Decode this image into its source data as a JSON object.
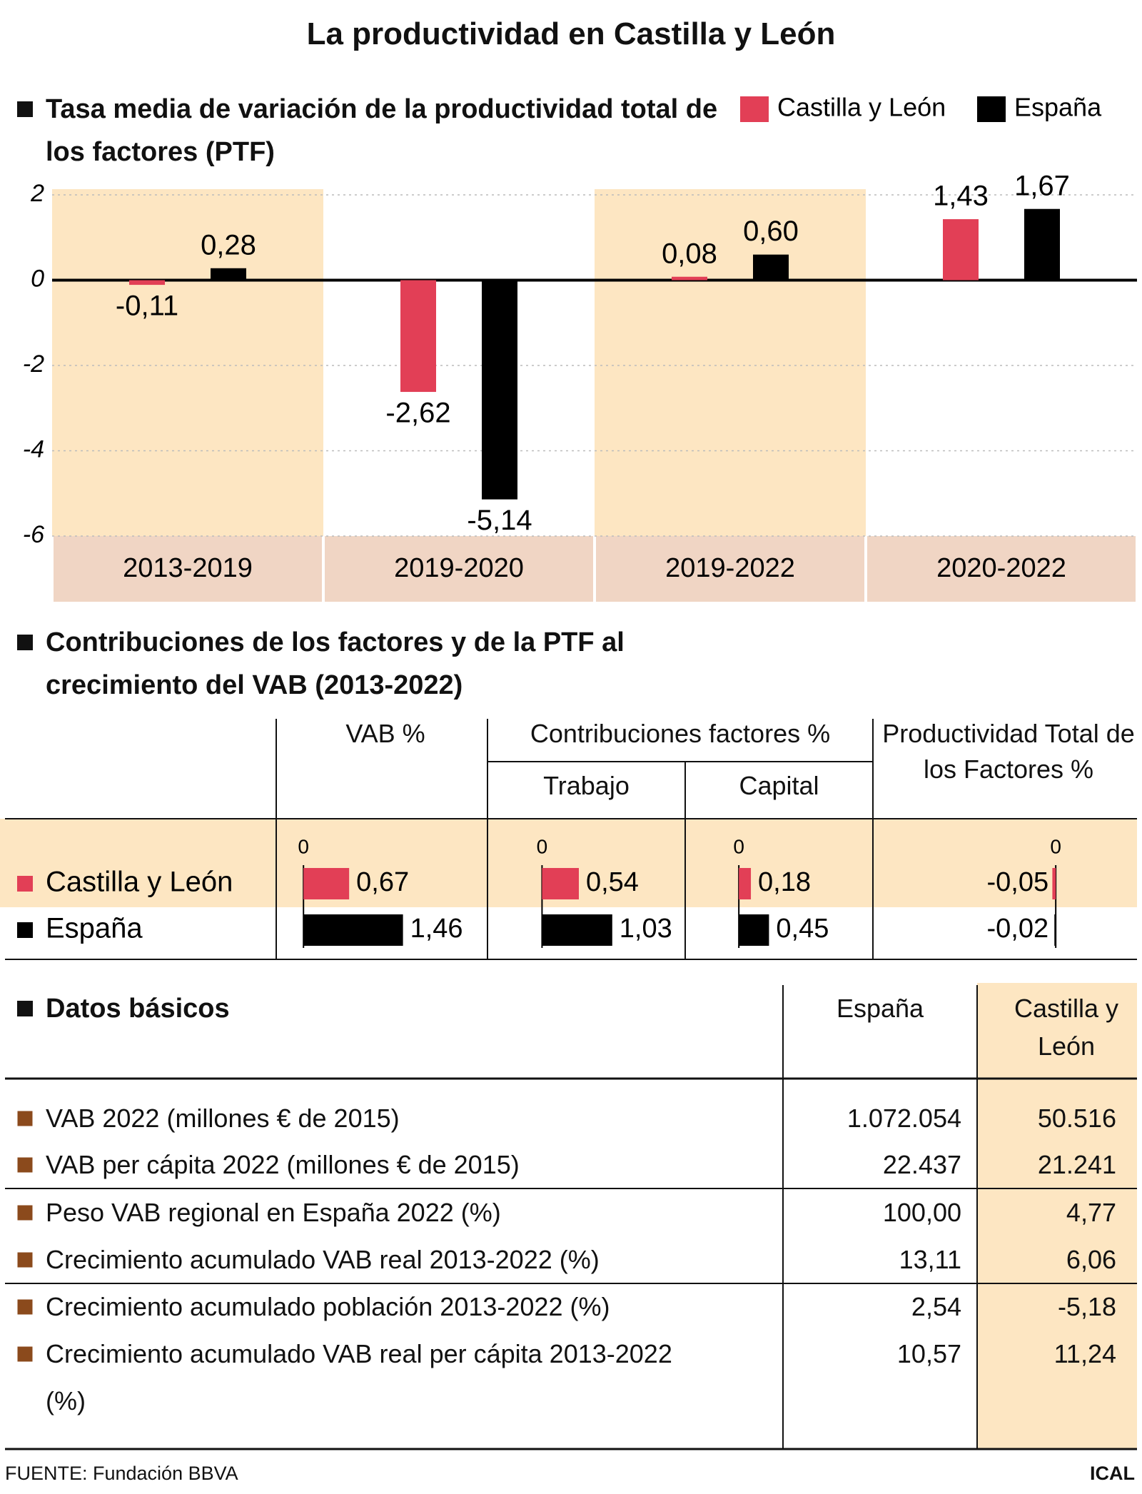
{
  "header": {
    "title": "La productividad en Castilla y León"
  },
  "chart_data": [
    {
      "type": "bar",
      "title": "Tasa media de variación de la productividad total de los factores (PTF)",
      "categories": [
        "2013-2019",
        "2019-2020",
        "2019-2022",
        "2020-2022"
      ],
      "series": [
        {
          "name": "Castilla y León",
          "color": "#e23f56",
          "values": [
            -0.11,
            -2.62,
            0.08,
            1.43
          ],
          "value_labels": [
            "-0,11",
            "-2,62",
            "0,08",
            "1,43"
          ]
        },
        {
          "name": "España",
          "color": "#000000",
          "values": [
            0.28,
            -5.14,
            0.6,
            1.67
          ],
          "value_labels": [
            "0,28",
            "-5,14",
            "0,60",
            "1,67"
          ]
        }
      ],
      "ylim": [
        -6,
        2
      ],
      "yticks": [
        -6,
        -4,
        -2,
        0,
        2
      ],
      "grid": true,
      "legend": "top-right"
    },
    {
      "type": "hbar-panels",
      "title": "Contribuciones de los factores y de la PTF al crecimiento del VAB (2013-2022)",
      "categories": [
        "Castilla y León",
        "España"
      ],
      "colors": [
        "#e23f56",
        "#000000"
      ],
      "panels": [
        {
          "name": "VAB %",
          "values": [
            0.67,
            1.46
          ],
          "value_labels": [
            "0,67",
            "1,46"
          ],
          "xlim": [
            -0.4,
            2.7
          ],
          "xticks": [
            0
          ]
        },
        {
          "name": "Contribuciones factores %",
          "panels": [
            {
              "name": "Trabajo",
              "values": [
                0.54,
                1.03
              ],
              "value_labels": [
                "0,54",
                "1,03"
              ],
              "xlim": [
                -0.8,
                2.1
              ],
              "xticks": [
                0
              ]
            },
            {
              "name": "Capital",
              "values": [
                0.18,
                0.45
              ],
              "value_labels": [
                "0,18",
                "0,45"
              ],
              "xlim": [
                -0.8,
                2.0
              ],
              "xticks": [
                0
              ]
            }
          ]
        },
        {
          "name": "Productividad Total de los Factores %",
          "values": [
            -0.05,
            -0.02
          ],
          "value_labels": [
            "-0,05",
            "-0,02"
          ],
          "xlim": [
            -2.7,
            1.2
          ],
          "xticks": [
            0
          ]
        }
      ]
    }
  ],
  "table": {
    "title": "Datos básicos",
    "columns": [
      "España",
      "Castilla y León"
    ],
    "rows": [
      [
        "VAB 2022 (millones € de 2015)",
        "1.072.054",
        "50.516"
      ],
      [
        "VAB per cápita 2022 (millones € de 2015)",
        "22.437",
        "21.241"
      ],
      [
        "Peso VAB regional en España 2022 (%)",
        "100,00",
        "4,77"
      ],
      [
        "Crecimiento acumulado VAB real 2013-2022 (%)",
        "13,11",
        "6,06"
      ],
      [
        "Crecimiento acumulado población 2013-2022 (%)",
        "2,54",
        "-5,18"
      ],
      [
        "Crecimiento acumulado VAB real per cápita 2013-2022 (%)",
        "10,57",
        "11,24"
      ]
    ]
  },
  "footer": {
    "source": "FUENTE: Fundación BBVA",
    "credit": "ICAL"
  }
}
